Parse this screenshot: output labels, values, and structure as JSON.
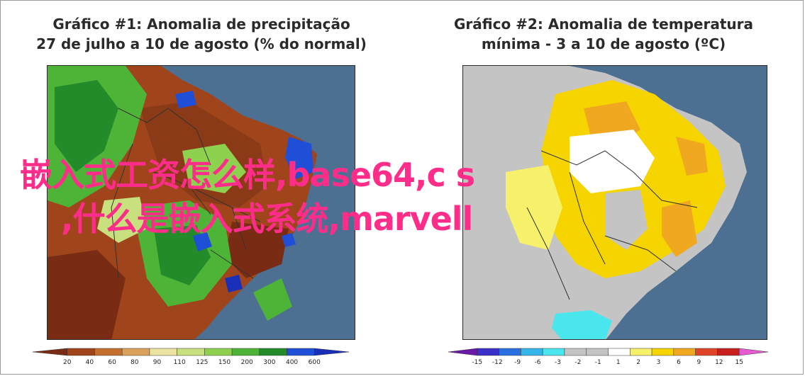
{
  "panel1": {
    "title_line1": "Gráfico #1: Anomalia de precipitação",
    "title_line2": "27 de julho a 10 de agosto (% do normal)",
    "colorbar_ticks": [
      "20",
      "40",
      "60",
      "80",
      "90",
      "110",
      "125",
      "150",
      "200",
      "300",
      "400",
      "600"
    ],
    "colorbar_colors": [
      "#7a2b14",
      "#a0451b",
      "#c3702e",
      "#d9a15a",
      "#ece3a3",
      "#c8e07d",
      "#8ed14f",
      "#4db438",
      "#238b2a",
      "#1e4fd6",
      "#1a2fb8"
    ]
  },
  "panel2": {
    "title_line1": "Gráfico #2: Anomalia de temperatura",
    "title_line2": "mínima - 3 a 10 de agosto (ºC)",
    "colorbar_ticks": [
      "-15",
      "-12",
      "-9",
      "-6",
      "-3",
      "-2",
      "-1",
      "1",
      "2",
      "3",
      "6",
      "9",
      "12",
      "15"
    ],
    "colorbar_colors": [
      "#6a18a8",
      "#3a2fc8",
      "#2a6fe0",
      "#36b6e8",
      "#49e6ee",
      "#c4c4c4",
      "#c4c4c4",
      "#ffffff",
      "#f7f06a",
      "#f5d400",
      "#f0a820",
      "#e0452a",
      "#c81e1e",
      "#e85ad0"
    ]
  },
  "overlay": {
    "line1": "嵌入式工资怎么样,base64,c s",
    "line2": ",什么是嵌入式系统,marvell"
  },
  "colors": {
    "ocean": "#4c6f92",
    "overlay_text": "#ff2d8a"
  }
}
